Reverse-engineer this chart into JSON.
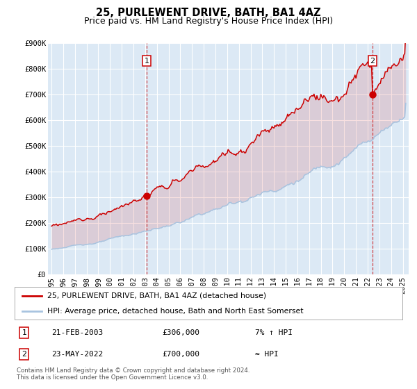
{
  "title": "25, PURLEWENT DRIVE, BATH, BA1 4AZ",
  "subtitle": "Price paid vs. HM Land Registry's House Price Index (HPI)",
  "ylim": [
    0,
    900000
  ],
  "yticks": [
    0,
    100000,
    200000,
    300000,
    400000,
    500000,
    600000,
    700000,
    800000,
    900000
  ],
  "ytick_labels": [
    "£0",
    "£100K",
    "£200K",
    "£300K",
    "£400K",
    "£500K",
    "£600K",
    "£700K",
    "£800K",
    "£900K"
  ],
  "xlim_start": 1994.7,
  "xlim_end": 2025.5,
  "hpi_color": "#a8c4e0",
  "price_color": "#cc0000",
  "marker_color": "#cc0000",
  "plot_bg_color": "#dce9f5",
  "grid_color": "#ffffff",
  "sale1_x": 2003.13,
  "sale1_y": 306000,
  "sale1_label": "1",
  "sale1_date": "21-FEB-2003",
  "sale1_price": "£306,000",
  "sale1_note": "7% ↑ HPI",
  "sale2_x": 2022.39,
  "sale2_y": 700000,
  "sale2_label": "2",
  "sale2_date": "23-MAY-2022",
  "sale2_price": "£700,000",
  "sale2_note": "≈ HPI",
  "legend_line1": "25, PURLEWENT DRIVE, BATH, BA1 4AZ (detached house)",
  "legend_line2": "HPI: Average price, detached house, Bath and North East Somerset",
  "footer1": "Contains HM Land Registry data © Crown copyright and database right 2024.",
  "footer2": "This data is licensed under the Open Government Licence v3.0.",
  "title_fontsize": 10.5,
  "subtitle_fontsize": 9,
  "tick_fontsize": 7.5
}
